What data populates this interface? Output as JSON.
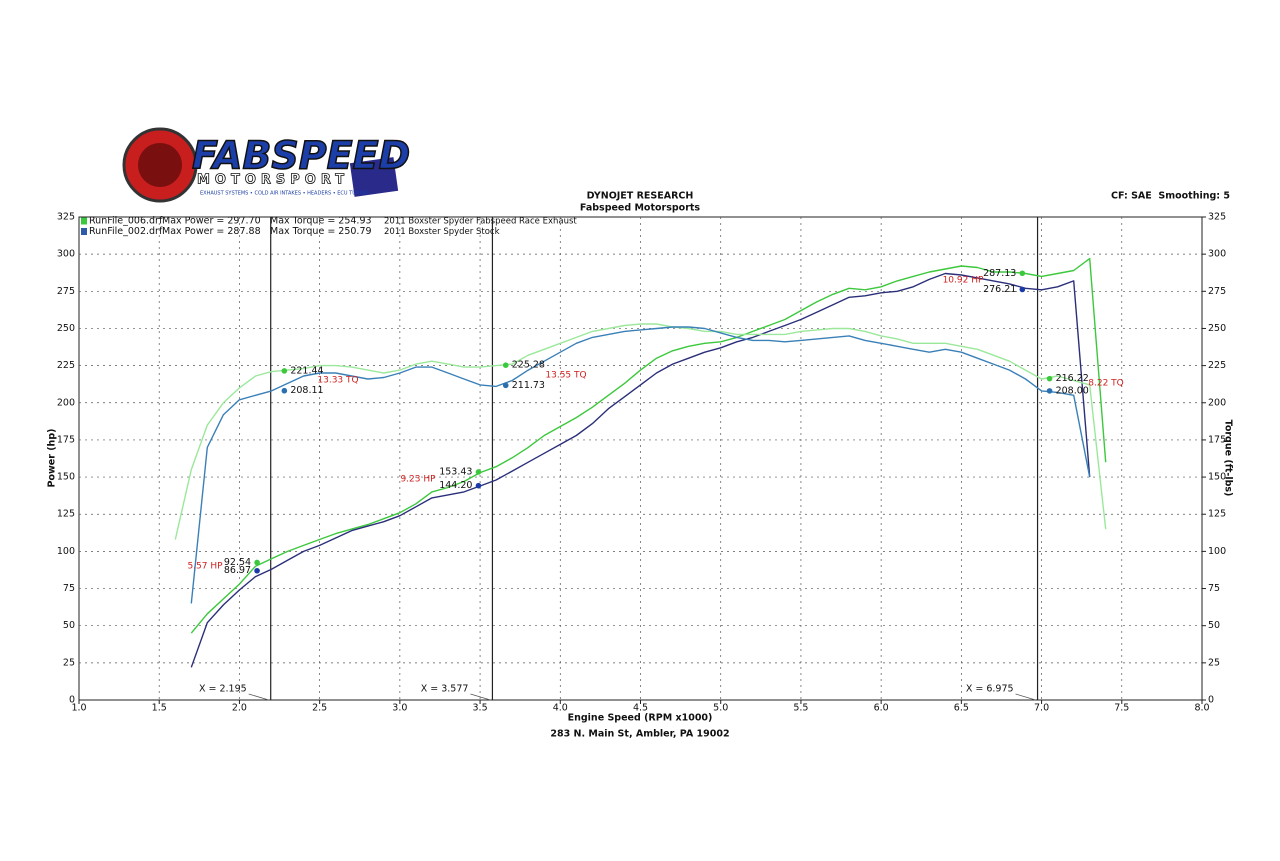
{
  "logo": {
    "brand": "FABSPEED",
    "sub": "MOTORSPORT",
    "tagline": "EXHAUST SYSTEMS • COLD AIR INTAKES • HEADERS • ECU TUNING"
  },
  "chart_data": {
    "type": "line",
    "title": "DYNOJET RESEARCH",
    "subtitle": "Fabspeed Motorsports",
    "settings_text": "CF: SAE  Smoothing: 5",
    "footer": "283 N. Main St, Ambler, PA 19002",
    "x_label": "Engine Speed (RPM x1000)",
    "y_label": "Power (hp)",
    "y2_label": "Torque (ft-lbs)",
    "grid": true,
    "xlim": [
      1,
      8
    ],
    "xticks": [
      {
        "value": 1,
        "label": "1.0"
      },
      1.5,
      {
        "value": 2,
        "label": "2.0"
      },
      2.5,
      {
        "value": 3,
        "label": "3.0"
      },
      3.5,
      {
        "value": 4,
        "label": "4.0"
      },
      4.5,
      {
        "value": 5,
        "label": "5.0"
      },
      5.5,
      {
        "value": 6,
        "label": "6.0"
      },
      6.5,
      {
        "value": 7,
        "label": "7.0"
      },
      7.5,
      {
        "value": 8,
        "label": "8.0"
      }
    ],
    "ylim": [
      0,
      325
    ],
    "yticks": [
      0,
      25,
      50,
      75,
      100,
      125,
      150,
      175,
      200,
      225,
      250,
      275,
      300,
      325
    ],
    "y2lim": [
      0,
      325
    ],
    "y2ticks": [
      0,
      25,
      50,
      75,
      100,
      125,
      150,
      175,
      200,
      225,
      250,
      275,
      300,
      325
    ],
    "legend": [
      {
        "name": "RunFile_006.drf",
        "color": "#3cc83c",
        "power": "Max Power = 297.70",
        "torque": "Max Torque = 254.93",
        "desc": "2011 Boxster Spyder Fabspeed Race Exhaust"
      },
      {
        "name": "RunFile_002.drf",
        "color": "#2e5aa8",
        "power": "Max Power = 287.88",
        "torque": "Max Torque = 250.79",
        "desc": "2011 Boxster Spyder Stock"
      }
    ],
    "x": [
      1.6,
      1.7,
      1.8,
      1.9,
      2.0,
      2.1,
      2.2,
      2.3,
      2.4,
      2.5,
      2.6,
      2.7,
      2.8,
      2.9,
      3.0,
      3.1,
      3.2,
      3.3,
      3.4,
      3.5,
      3.6,
      3.7,
      3.8,
      3.9,
      4.0,
      4.1,
      4.2,
      4.3,
      4.4,
      4.5,
      4.6,
      4.7,
      4.8,
      4.9,
      5.0,
      5.1,
      5.2,
      5.3,
      5.4,
      5.5,
      5.6,
      5.7,
      5.8,
      5.9,
      6.0,
      6.1,
      6.2,
      6.3,
      6.4,
      6.5,
      6.6,
      6.7,
      6.8,
      6.9,
      7.0,
      7.1,
      7.2,
      7.3,
      7.4
    ],
    "series": [
      {
        "color": "#3cc83c",
        "axis": "y",
        "values": [
          null,
          45,
          58,
          68,
          78,
          90,
          95,
          100,
          104,
          108,
          112,
          115,
          118,
          122,
          126,
          132,
          140,
          143,
          147,
          153,
          157,
          163,
          170,
          178,
          184,
          190,
          197,
          205,
          213,
          222,
          230,
          235,
          238,
          240,
          241,
          244,
          248,
          252,
          256,
          262,
          268,
          273,
          277,
          276,
          278,
          282,
          285,
          288,
          290,
          292,
          291,
          288,
          288,
          287,
          285,
          287,
          289,
          297,
          160
        ]
      },
      {
        "color": "#2b2f7a",
        "axis": "y",
        "values": [
          null,
          22,
          52,
          64,
          74,
          83,
          88,
          94,
          100,
          104,
          109,
          114,
          117,
          120,
          124,
          130,
          136,
          138,
          140,
          144,
          148,
          154,
          160,
          166,
          172,
          178,
          186,
          196,
          204,
          212,
          220,
          226,
          230,
          234,
          237,
          241,
          244,
          248,
          252,
          256,
          261,
          266,
          271,
          272,
          274,
          275,
          278,
          283,
          287,
          286,
          284,
          282,
          280,
          277,
          276,
          278,
          282,
          150,
          null
        ]
      },
      {
        "color": "#9be89b",
        "axis": "y2",
        "values": [
          108,
          155,
          185,
          200,
          210,
          218,
          221,
          222,
          223,
          225,
          225,
          224,
          222,
          220,
          222,
          226,
          228,
          226,
          224,
          224,
          225,
          226,
          232,
          236,
          240,
          244,
          248,
          250,
          252,
          253,
          253,
          251,
          250,
          248,
          248,
          246,
          246,
          246,
          246,
          248,
          249,
          250,
          250,
          248,
          245,
          243,
          240,
          240,
          240,
          238,
          236,
          232,
          228,
          222,
          216,
          218,
          215,
          212,
          115
        ]
      },
      {
        "color": "#3a80b8",
        "axis": "y2",
        "values": [
          null,
          65,
          170,
          192,
          202,
          205,
          208,
          213,
          218,
          220,
          220,
          218,
          216,
          217,
          220,
          224,
          224,
          220,
          216,
          212,
          211,
          215,
          222,
          228,
          234,
          240,
          244,
          246,
          248,
          249,
          250,
          251,
          251,
          250,
          247,
          244,
          242,
          242,
          241,
          242,
          243,
          244,
          245,
          242,
          240,
          238,
          236,
          234,
          236,
          234,
          230,
          226,
          222,
          216,
          208,
          207,
          205,
          150,
          null
        ]
      }
    ],
    "cursors": [
      {
        "value": 2.195,
        "label": "X = 2.195"
      },
      {
        "value": 3.577,
        "label": "X = 3.577"
      },
      {
        "value": 6.975,
        "label": "X = 6.975"
      }
    ],
    "markers": {
      "x": [
        2.11,
        2.11,
        2.28,
        2.28,
        3.49,
        3.49,
        3.66,
        3.66,
        6.88,
        6.88,
        7.05,
        7.05
      ],
      "values": [
        92.54,
        86.97,
        221.44,
        208.11,
        153.43,
        144.2,
        225.28,
        211.73,
        287.13,
        276.21,
        216.22,
        208
      ],
      "value_labels": [
        "92.54",
        "86.97",
        "221.44",
        "208.11",
        "153.43",
        "144.20",
        "225.28",
        "211.73",
        "287.13",
        "276.21",
        "216.22",
        "208.00"
      ],
      "colors": [
        "#3cc83c",
        "#1a3aa8",
        "#3cc83c",
        "#2a70b0",
        "#3cc83c",
        "#1a3aa8",
        "#3cc83c",
        "#2a70b0",
        "#3cc83c",
        "#1a3aa8",
        "#3cc83c",
        "#2a70b0"
      ]
    },
    "annotations": [
      "5.57 HP",
      "13.33 TQ",
      "9.23 HP",
      "13.55 TQ",
      "10.92 HP",
      "8.22 TQ"
    ],
    "annotation_color": "#d02020"
  }
}
